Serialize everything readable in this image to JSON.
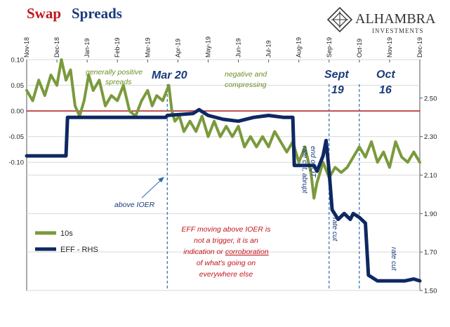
{
  "chart_data": {
    "type": "line",
    "title_part1": "Swap",
    "title_part2": "Spreads",
    "x_tick_labels": [
      "Nov-18",
      "Dec-18",
      "Jan-19",
      "Feb-19",
      "Mar-19",
      "Apr-19",
      "May-19",
      "Jun-19",
      "Jul-19",
      "Aug-19",
      "Sep-19",
      "Oct-19",
      "Nov-19",
      "Dec-19"
    ],
    "left_axis": {
      "ylim": [
        -0.35,
        0.1
      ],
      "ticks": [
        "0.10",
        "0.05",
        "0.00",
        "-0.05",
        "-0.10"
      ],
      "tick_values": [
        0.1,
        0.05,
        0.0,
        -0.05,
        -0.1
      ]
    },
    "right_axis": {
      "ylim": [
        1.5,
        2.7
      ],
      "ticks": [
        "2.50",
        "2.30",
        "2.10",
        "1.90",
        "1.70",
        "1.50"
      ],
      "tick_values": [
        2.5,
        2.3,
        2.1,
        1.9,
        1.7,
        1.5
      ]
    },
    "series": [
      {
        "name": "10s",
        "axis": "left",
        "color": "#7a9a3c",
        "points": [
          [
            0.0,
            0.04
          ],
          [
            0.2,
            0.02
          ],
          [
            0.4,
            0.06
          ],
          [
            0.6,
            0.03
          ],
          [
            0.8,
            0.07
          ],
          [
            1.0,
            0.05
          ],
          [
            1.15,
            0.1
          ],
          [
            1.3,
            0.06
          ],
          [
            1.45,
            0.08
          ],
          [
            1.6,
            0.01
          ],
          [
            1.75,
            -0.01
          ],
          [
            1.9,
            0.02
          ],
          [
            2.05,
            0.07
          ],
          [
            2.2,
            0.04
          ],
          [
            2.4,
            0.06
          ],
          [
            2.6,
            0.01
          ],
          [
            2.8,
            0.03
          ],
          [
            3.0,
            0.02
          ],
          [
            3.2,
            0.05
          ],
          [
            3.4,
            0.0
          ],
          [
            3.6,
            -0.01
          ],
          [
            3.8,
            0.02
          ],
          [
            4.0,
            0.04
          ],
          [
            4.15,
            0.01
          ],
          [
            4.3,
            0.03
          ],
          [
            4.5,
            0.02
          ],
          [
            4.7,
            0.05
          ],
          [
            4.8,
            0.0
          ],
          [
            4.9,
            -0.02
          ],
          [
            5.05,
            -0.01
          ],
          [
            5.2,
            -0.04
          ],
          [
            5.4,
            -0.02
          ],
          [
            5.6,
            -0.04
          ],
          [
            5.8,
            -0.01
          ],
          [
            6.0,
            -0.05
          ],
          [
            6.2,
            -0.02
          ],
          [
            6.4,
            -0.05
          ],
          [
            6.6,
            -0.03
          ],
          [
            6.8,
            -0.05
          ],
          [
            7.0,
            -0.03
          ],
          [
            7.2,
            -0.07
          ],
          [
            7.4,
            -0.05
          ],
          [
            7.6,
            -0.07
          ],
          [
            7.8,
            -0.05
          ],
          [
            8.0,
            -0.07
          ],
          [
            8.2,
            -0.04
          ],
          [
            8.4,
            -0.06
          ],
          [
            8.6,
            -0.08
          ],
          [
            8.8,
            -0.06
          ],
          [
            9.0,
            -0.1
          ],
          [
            9.2,
            -0.07
          ],
          [
            9.4,
            -0.12
          ],
          [
            9.5,
            -0.17
          ],
          [
            9.6,
            -0.14
          ],
          [
            9.8,
            -0.1
          ],
          [
            10.0,
            -0.13
          ],
          [
            10.2,
            -0.11
          ],
          [
            10.4,
            -0.12
          ],
          [
            10.6,
            -0.11
          ],
          [
            10.8,
            -0.09
          ],
          [
            11.0,
            -0.07
          ],
          [
            11.2,
            -0.09
          ],
          [
            11.4,
            -0.06
          ],
          [
            11.6,
            -0.1
          ],
          [
            11.8,
            -0.08
          ],
          [
            12.0,
            -0.11
          ],
          [
            12.2,
            -0.06
          ],
          [
            12.4,
            -0.09
          ],
          [
            12.6,
            -0.1
          ],
          [
            12.8,
            -0.08
          ],
          [
            13.0,
            -0.1
          ]
        ]
      },
      {
        "name": "EFF - RHS",
        "axis": "right",
        "color": "#0e2862",
        "points": [
          [
            0.0,
            2.2
          ],
          [
            1.3,
            2.2
          ],
          [
            1.35,
            2.4
          ],
          [
            4.6,
            2.4
          ],
          [
            4.65,
            2.41
          ],
          [
            5.5,
            2.42
          ],
          [
            5.7,
            2.44
          ],
          [
            6.0,
            2.41
          ],
          [
            6.5,
            2.39
          ],
          [
            7.0,
            2.38
          ],
          [
            7.5,
            2.4
          ],
          [
            8.0,
            2.41
          ],
          [
            8.5,
            2.4
          ],
          [
            8.8,
            2.4
          ],
          [
            8.85,
            2.15
          ],
          [
            9.5,
            2.15
          ],
          [
            9.6,
            2.12
          ],
          [
            9.8,
            2.2
          ],
          [
            9.9,
            2.28
          ],
          [
            10.0,
            2.12
          ],
          [
            10.1,
            1.92
          ],
          [
            10.3,
            1.87
          ],
          [
            10.5,
            1.9
          ],
          [
            10.7,
            1.87
          ],
          [
            10.8,
            1.9
          ],
          [
            11.0,
            1.88
          ],
          [
            11.2,
            1.85
          ],
          [
            11.3,
            1.58
          ],
          [
            11.6,
            1.55
          ],
          [
            12.0,
            1.55
          ],
          [
            12.5,
            1.55
          ],
          [
            12.8,
            1.56
          ],
          [
            13.0,
            1.55
          ]
        ]
      }
    ],
    "annotations": {
      "mar20": "Mar 20",
      "sept_line1": "Sept",
      "sept_line2": "19",
      "oct_line1": "Oct",
      "oct_line2": "16",
      "positive_line1": "generally positive",
      "positive_line2": "spreads",
      "negative_line1": "negative and",
      "negative_line2": "compressing",
      "above_ioer": "above IOER",
      "cut1_line1": "rate cut, abrupt",
      "cut1_line2": "end of QT",
      "cut2": "rate cut",
      "cut3": "rate cut",
      "eff_note_line1": "EFF moving above IOER is",
      "eff_note_line2": "not a trigger, it is an",
      "eff_note_line3_pre": "indication or ",
      "eff_note_line3_link": "corroboration",
      "eff_note_line4": "of what's going on",
      "eff_note_line5": "everywhere else"
    },
    "vlines_x": [
      4.65,
      10.0,
      11.0
    ],
    "colors": {
      "title_red": "#c0161c",
      "title_blue": "#1a3a7a",
      "zero_line": "#b0161c",
      "note_red": "#c0161c",
      "ann_blue": "#1a3a7a",
      "ann_green": "#6b8e23",
      "vline": "#2e6bb0"
    }
  },
  "logo": {
    "name": "ALHAMBRA",
    "sub": "INVESTMENTS"
  },
  "legend": {
    "item1": "10s",
    "item2": "EFF - RHS"
  }
}
